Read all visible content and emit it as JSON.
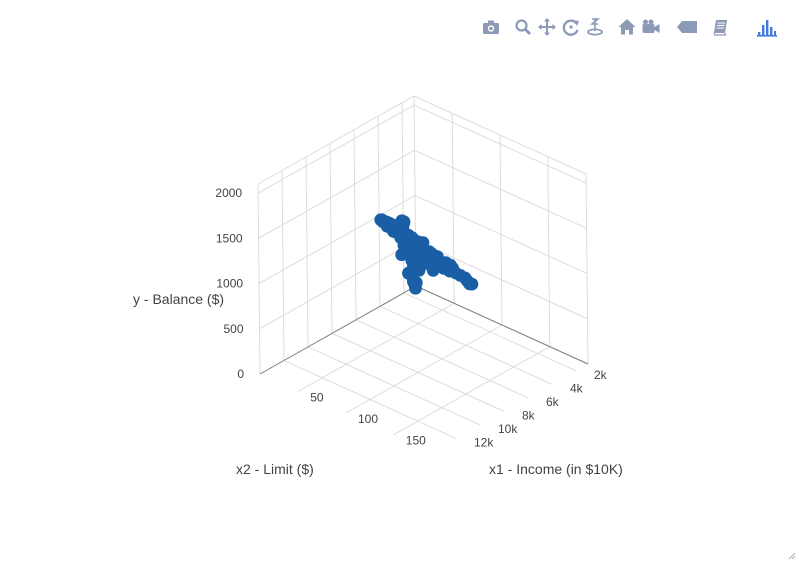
{
  "colors": {
    "marker": "#1a5fa6",
    "grid": "#dcdcdc",
    "axis_line": "#808080",
    "text": "#444444",
    "modebar_icon": "#8c9ab8",
    "modebar_active": "#447adb"
  },
  "modebar": {
    "buttons": [
      {
        "name": "download-plot-button",
        "icon": "camera-icon",
        "active": false
      },
      {
        "name": "zoom-button",
        "icon": "magnifier-icon",
        "active": false
      },
      {
        "name": "pan-button",
        "icon": "move-arrows-icon",
        "active": false
      },
      {
        "name": "orbit-rotation-button",
        "icon": "rotate-icon",
        "active": false
      },
      {
        "name": "turntable-rotation-button",
        "icon": "turntable-icon",
        "active": false
      },
      {
        "name": "reset-camera-button",
        "icon": "home-icon",
        "active": false
      },
      {
        "name": "save-camera-button",
        "icon": "video-camera-icon",
        "active": false
      },
      {
        "name": "hover-closest-button",
        "icon": "tag-icon",
        "active": false
      },
      {
        "name": "hover-compare-button",
        "icon": "book-icon",
        "active": false
      },
      {
        "name": "plotly-logo-button",
        "icon": "plotly-bars-icon",
        "active": true
      }
    ]
  },
  "chart_data": {
    "type": "scatter",
    "mode": "3d",
    "title": "",
    "xlabel": "x1 - Income (in $10K)",
    "ylabel": "x2 - Limit ($)",
    "zlabel": "y - Balance ($)",
    "x_ticks": [
      "50",
      "100",
      "150"
    ],
    "y_ticks": [
      "2k",
      "4k",
      "6k",
      "8k",
      "10k",
      "12k"
    ],
    "z_ticks": [
      "0",
      "500",
      "1000",
      "1500",
      "2000"
    ],
    "xlim": [
      10,
      190
    ],
    "ylim": [
      1000,
      14000
    ],
    "zlim": [
      0,
      2100
    ],
    "grid": true,
    "series": [
      {
        "marker_color": "#1a5fa6",
        "points": [
          [
            22,
            1800,
            400
          ],
          [
            35,
            2200,
            520
          ],
          [
            28,
            2600,
            480
          ],
          [
            45,
            2900,
            560
          ],
          [
            30,
            3000,
            610
          ],
          [
            55,
            3300,
            640
          ],
          [
            40,
            3400,
            720
          ],
          [
            25,
            3200,
            600
          ],
          [
            60,
            3700,
            690
          ],
          [
            35,
            3600,
            760
          ],
          [
            70,
            4000,
            730
          ],
          [
            50,
            3900,
            810
          ],
          [
            30,
            3800,
            840
          ],
          [
            80,
            4200,
            770
          ],
          [
            45,
            4100,
            880
          ],
          [
            65,
            4300,
            850
          ],
          [
            25,
            4000,
            900
          ],
          [
            90,
            4500,
            810
          ],
          [
            55,
            4400,
            920
          ],
          [
            35,
            4300,
            960
          ],
          [
            75,
            4600,
            900
          ],
          [
            40,
            4700,
            990
          ],
          [
            100,
            4800,
            860
          ],
          [
            60,
            4800,
            960
          ],
          [
            30,
            4600,
            1010
          ],
          [
            85,
            5000,
            940
          ],
          [
            45,
            5000,
            1040
          ],
          [
            110,
            5200,
            910
          ],
          [
            70,
            5200,
            1010
          ],
          [
            35,
            5000,
            1090
          ],
          [
            95,
            5400,
            990
          ],
          [
            55,
            5500,
            1090
          ],
          [
            40,
            5400,
            1140
          ],
          [
            120,
            5600,
            960
          ],
          [
            80,
            5700,
            1070
          ],
          [
            50,
            5800,
            1150
          ],
          [
            100,
            6000,
            1060
          ],
          [
            65,
            6000,
            1160
          ],
          [
            45,
            6100,
            1210
          ],
          [
            130,
            6200,
            1020
          ],
          [
            90,
            6300,
            1140
          ],
          [
            60,
            6400,
            1230
          ],
          [
            110,
            6600,
            1140
          ],
          [
            75,
            6700,
            1250
          ],
          [
            50,
            6600,
            1300
          ],
          [
            140,
            6800,
            1080
          ],
          [
            95,
            6900,
            1220
          ],
          [
            65,
            7000,
            1320
          ],
          [
            120,
            7100,
            1210
          ],
          [
            80,
            7300,
            1350
          ],
          [
            55,
            7200,
            1390
          ],
          [
            150,
            7400,
            1170
          ],
          [
            105,
            7500,
            1300
          ],
          [
            70,
            7600,
            1430
          ],
          [
            130,
            7700,
            1290
          ],
          [
            90,
            7900,
            1440
          ],
          [
            60,
            7800,
            1480
          ],
          [
            115,
            8000,
            1390
          ],
          [
            80,
            8200,
            1520
          ],
          [
            140,
            8200,
            1360
          ],
          [
            100,
            8400,
            1490
          ],
          [
            70,
            8500,
            1580
          ],
          [
            125,
            8600,
            1460
          ],
          [
            90,
            8800,
            1590
          ],
          [
            110,
            9000,
            1560
          ],
          [
            80,
            9200,
            1660
          ],
          [
            135,
            9200,
            1530
          ],
          [
            100,
            9400,
            1660
          ],
          [
            120,
            9600,
            1640
          ],
          [
            90,
            9700,
            1740
          ],
          [
            140,
            9900,
            1620
          ],
          [
            110,
            10000,
            1760
          ],
          [
            130,
            10300,
            1740
          ],
          [
            100,
            10500,
            1850
          ],
          [
            120,
            10800,
            1860
          ],
          [
            140,
            11000,
            1830
          ],
          [
            115,
            11300,
            1950
          ],
          [
            135,
            11600,
            1960
          ],
          [
            125,
            12000,
            2040
          ],
          [
            145,
            12300,
            2020
          ],
          [
            20,
            2000,
            170
          ],
          [
            15,
            1500,
            80
          ],
          [
            12,
            1200,
            0
          ],
          [
            18,
            1600,
            120
          ],
          [
            25,
            2400,
            360
          ],
          [
            30,
            2800,
            430
          ],
          [
            20,
            2300,
            280
          ],
          [
            15,
            2000,
            240
          ],
          [
            40,
            3100,
            500
          ],
          [
            35,
            2700,
            420
          ],
          [
            28,
            3300,
            650
          ],
          [
            22,
            3100,
            560
          ],
          [
            60,
            3500,
            600
          ],
          [
            48,
            3800,
            780
          ],
          [
            38,
            4200,
            900
          ],
          [
            52,
            4600,
            960
          ],
          [
            68,
            4400,
            860
          ],
          [
            42,
            4500,
            1000
          ],
          [
            58,
            5100,
            1060
          ],
          [
            76,
            5100,
            960
          ],
          [
            48,
            5300,
            1120
          ],
          [
            88,
            5500,
            1000
          ],
          [
            64,
            5700,
            1130
          ],
          [
            44,
            5900,
            1200
          ],
          [
            98,
            6100,
            1080
          ],
          [
            72,
            6200,
            1170
          ],
          [
            52,
            6300,
            1250
          ],
          [
            106,
            6500,
            1130
          ],
          [
            84,
            6600,
            1230
          ],
          [
            58,
            6800,
            1330
          ],
          [
            118,
            6900,
            1200
          ],
          [
            92,
            7100,
            1300
          ],
          [
            66,
            7300,
            1390
          ],
          [
            124,
            7500,
            1290
          ],
          [
            98,
            7700,
            1410
          ],
          [
            72,
            7700,
            1460
          ],
          [
            134,
            7900,
            1340
          ],
          [
            108,
            8100,
            1480
          ],
          [
            78,
            8300,
            1550
          ],
          [
            128,
            8500,
            1450
          ],
          [
            96,
            8700,
            1580
          ],
          [
            118,
            9100,
            1600
          ],
          [
            88,
            9300,
            1690
          ],
          [
            132,
            9500,
            1600
          ],
          [
            106,
            9800,
            1720
          ],
          [
            126,
            10100,
            1730
          ],
          [
            112,
            10600,
            1820
          ],
          [
            132,
            10900,
            1860
          ],
          [
            122,
            11400,
            1960
          ],
          [
            140,
            11800,
            1990
          ],
          [
            34,
            4000,
            1060
          ],
          [
            30,
            3600,
            960
          ],
          [
            26,
            3200,
            830
          ],
          [
            18,
            2600,
            610
          ],
          [
            40,
            4300,
            1100
          ],
          [
            46,
            4800,
            1150
          ],
          [
            24,
            2900,
            780
          ],
          [
            20,
            2100,
            460
          ],
          [
            16,
            1800,
            370
          ],
          [
            50,
            5200,
            1200
          ]
        ]
      }
    ]
  }
}
